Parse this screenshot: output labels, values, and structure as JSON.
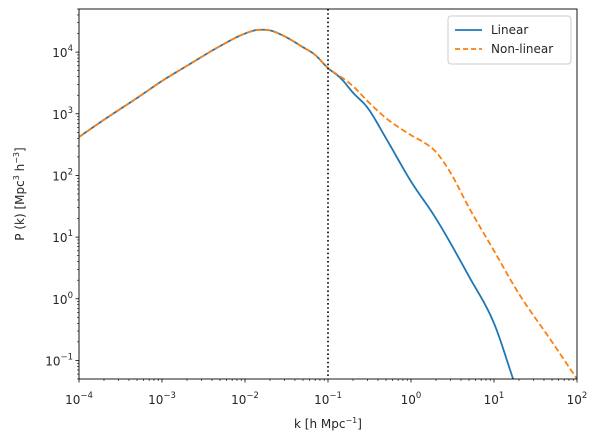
{
  "chart_data": {
    "type": "line",
    "xscale": "log",
    "yscale": "log",
    "xlim": [
      0.0001,
      100
    ],
    "ylim": [
      0.05,
      50000
    ],
    "xlabel": {
      "base": "k [h Mpc",
      "sup": "−1",
      "tail": "]"
    },
    "ylabel": {
      "a": "P (k) [Mpc",
      "sup1": "3",
      "b": " h",
      "sup2": "−3",
      "c": "]"
    },
    "x_ticks": [
      {
        "value": 0.0001,
        "base": "10",
        "exp": "−4"
      },
      {
        "value": 0.001,
        "base": "10",
        "exp": "−3"
      },
      {
        "value": 0.01,
        "base": "10",
        "exp": "−2"
      },
      {
        "value": 0.1,
        "base": "10",
        "exp": "−1"
      },
      {
        "value": 1,
        "base": "10",
        "exp": "0"
      },
      {
        "value": 10,
        "base": "10",
        "exp": "1"
      },
      {
        "value": 100,
        "base": "10",
        "exp": "2"
      }
    ],
    "y_ticks": [
      {
        "value": 0.1,
        "base": "10",
        "exp": "−1"
      },
      {
        "value": 1,
        "base": "10",
        "exp": "0"
      },
      {
        "value": 10,
        "base": "10",
        "exp": "1"
      },
      {
        "value": 100,
        "base": "10",
        "exp": "2"
      },
      {
        "value": 1000,
        "base": "10",
        "exp": "3"
      },
      {
        "value": 10000,
        "base": "10",
        "exp": "4"
      }
    ],
    "vline": {
      "x": 0.1,
      "style": "dotted",
      "color": "#000000"
    },
    "legend": {
      "position": "top-right"
    },
    "series": [
      {
        "name": "Linear",
        "color": "#1f77b4",
        "style": "solid",
        "x": [
          0.0001,
          0.0002,
          0.0005,
          0.001,
          0.002,
          0.005,
          0.01,
          0.015,
          0.02,
          0.03,
          0.05,
          0.07,
          0.1,
          0.13,
          0.15,
          0.2,
          0.3,
          0.5,
          1,
          2,
          5,
          10,
          17
        ],
        "y": [
          420,
          800,
          1800,
          3400,
          6000,
          12500,
          20000,
          23000,
          22500,
          18000,
          12000,
          9000,
          5500,
          4200,
          3500,
          2200,
          1250,
          400,
          80,
          20,
          2.3,
          0.4,
          0.05
        ]
      },
      {
        "name": "Non-linear",
        "color": "#ff7f0e",
        "style": "dashed",
        "x": [
          0.0001,
          0.0002,
          0.0005,
          0.001,
          0.002,
          0.005,
          0.01,
          0.015,
          0.02,
          0.03,
          0.05,
          0.07,
          0.1,
          0.13,
          0.15,
          0.2,
          0.3,
          0.5,
          1,
          1.5,
          2,
          3,
          5,
          10,
          20,
          50,
          100
        ],
        "y": [
          420,
          800,
          1800,
          3400,
          6000,
          12500,
          20000,
          23000,
          22500,
          18000,
          12000,
          9000,
          5500,
          4300,
          3800,
          2800,
          1600,
          850,
          450,
          330,
          240,
          110,
          30,
          6,
          1.2,
          0.2,
          0.05
        ]
      }
    ]
  }
}
